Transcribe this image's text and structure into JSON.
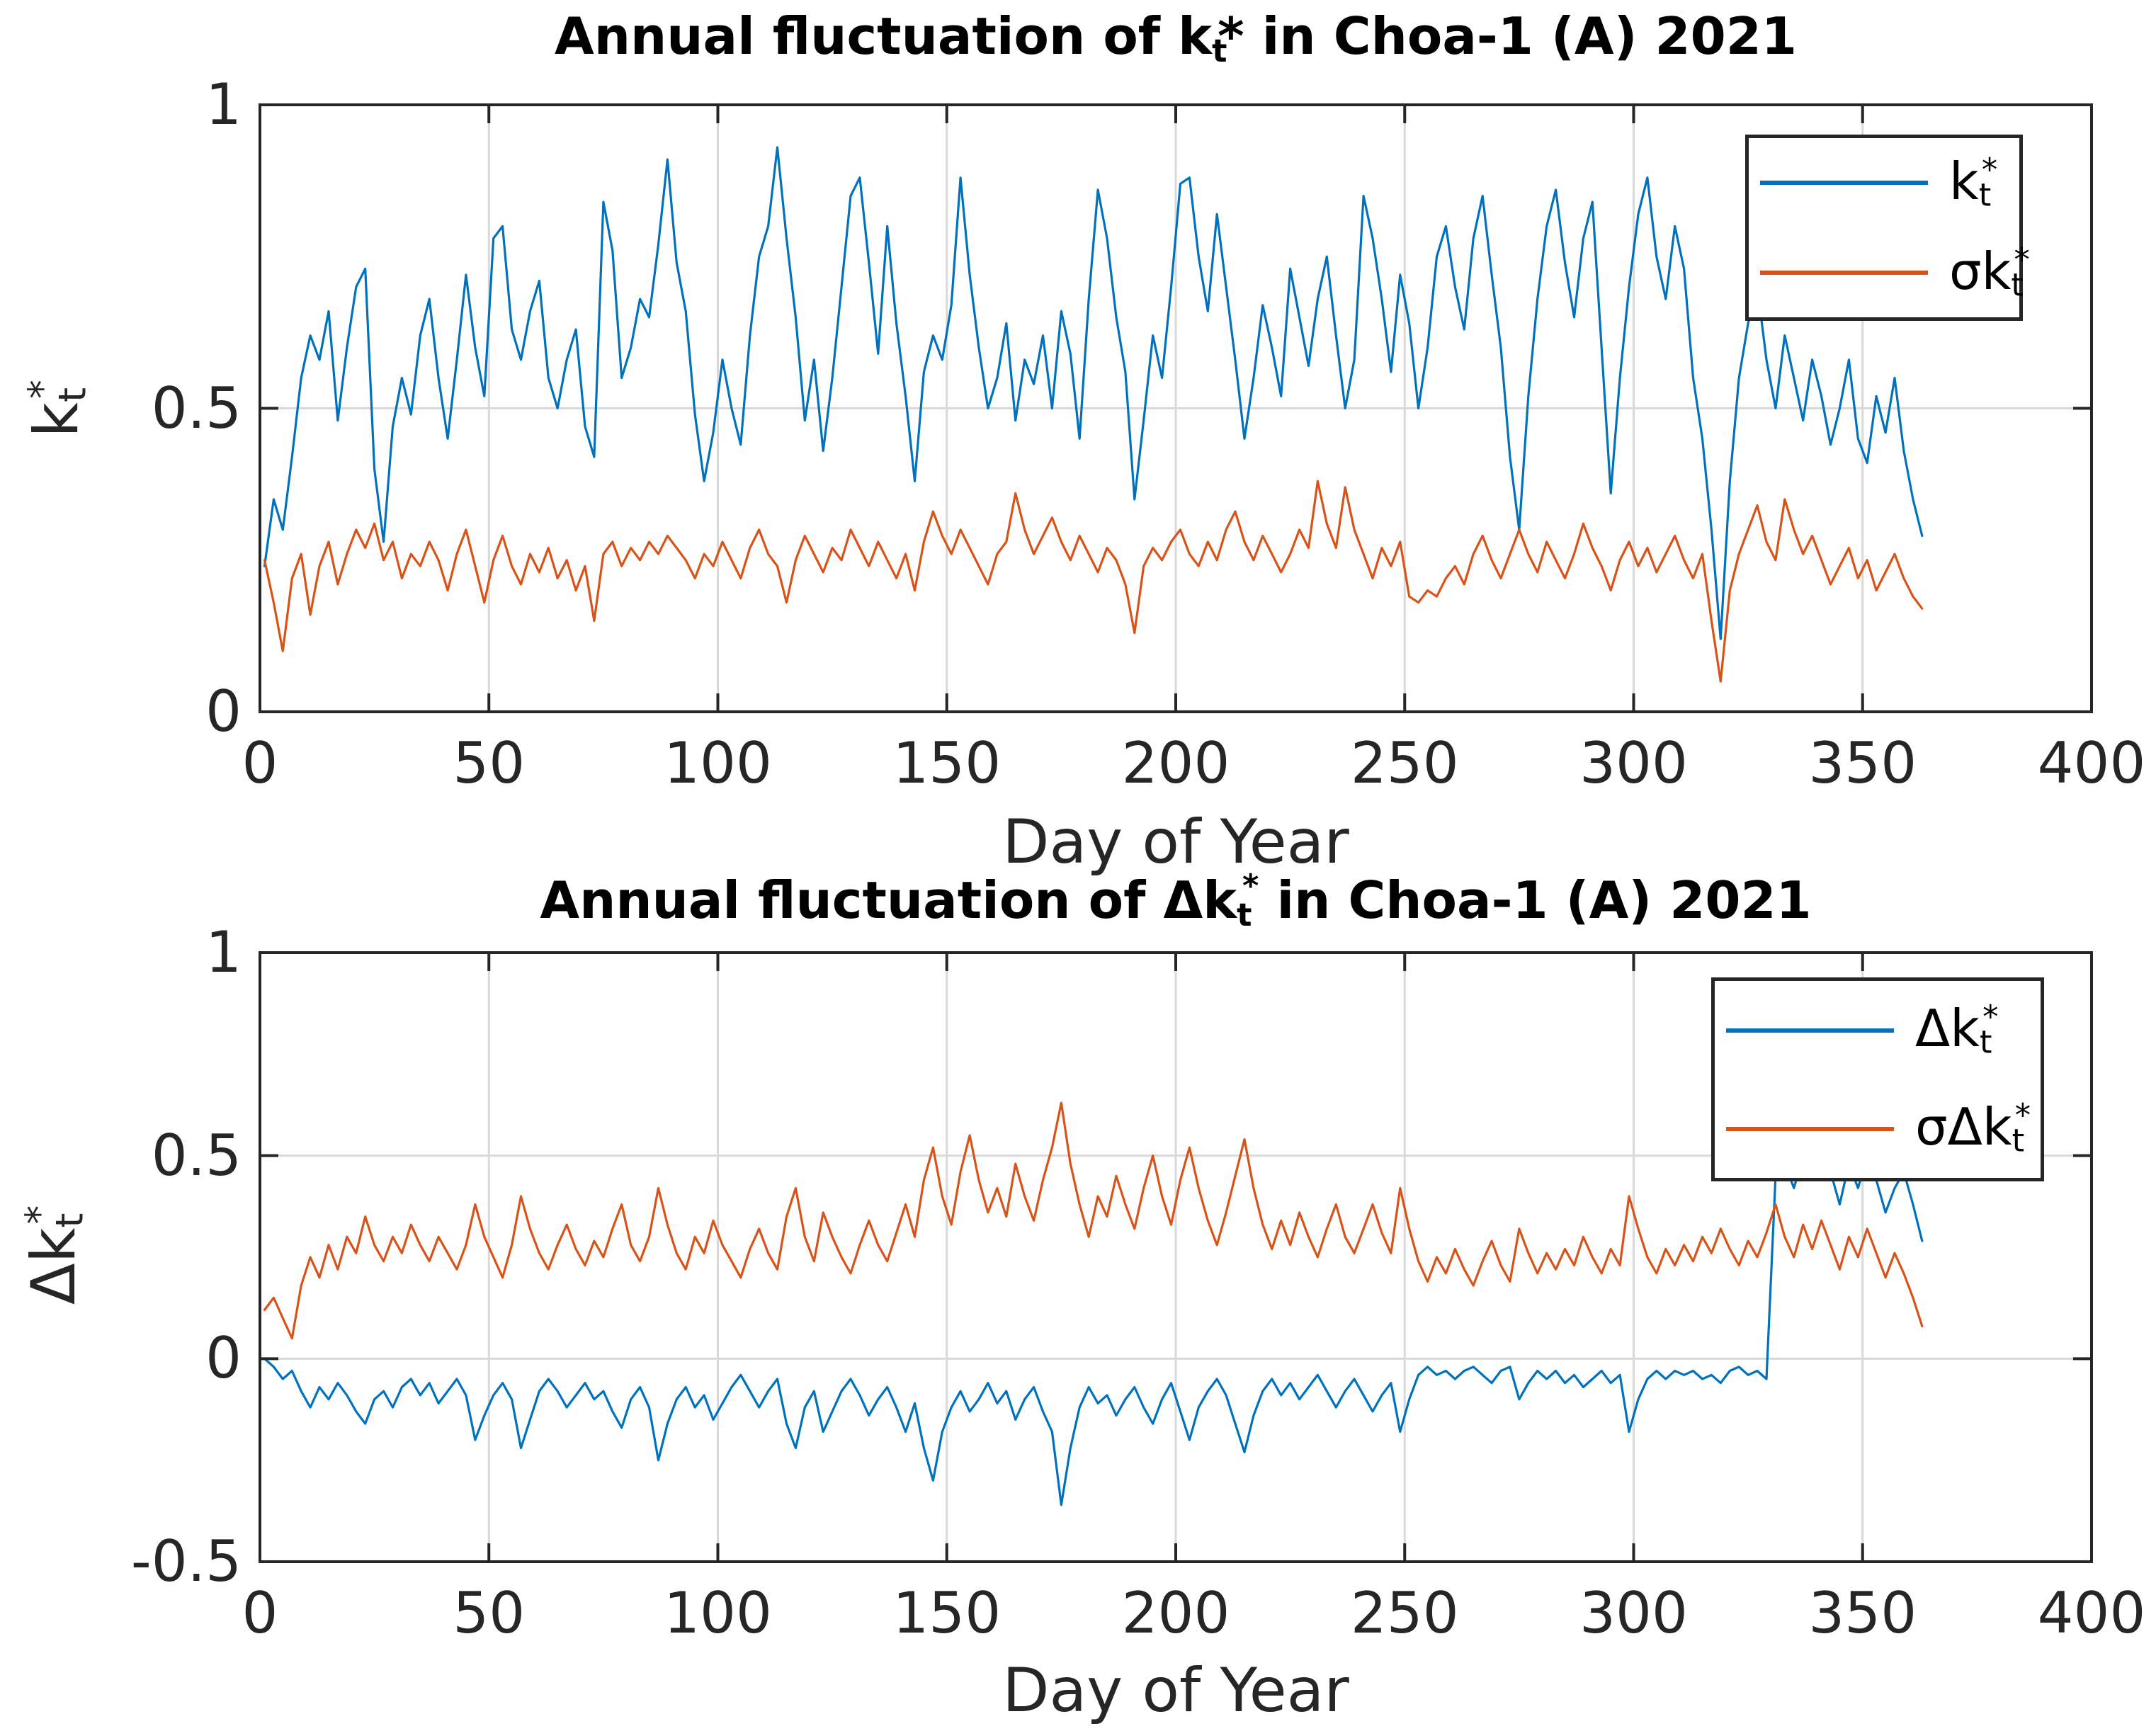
{
  "figure": {
    "background": "#ffffff"
  },
  "colors": {
    "series_blue": "#0072BD",
    "series_orange": "#D95319",
    "grid": "#d9d9d9",
    "axis": "#262626",
    "title_text": "#000000",
    "tick_text": "#262626"
  },
  "chart_data": [
    {
      "type": "line",
      "title": "Annual fluctuation of k_t* in Choa-1 (A) 2021",
      "title_parts": {
        "pre": "Annual fluctuation of k",
        "sub": "t",
        "sup": "",
        "post": "* in Choa-1 (A) 2021"
      },
      "xlabel": "Day of Year",
      "ylabel": "k_t*",
      "ylabel_parts": {
        "base": "k",
        "sub": "t",
        "sup": "*"
      },
      "xlim": [
        0,
        400
      ],
      "ylim": [
        0,
        1
      ],
      "xticks": [
        0,
        50,
        100,
        150,
        200,
        250,
        300,
        350,
        400
      ],
      "yticks": [
        0,
        0.5,
        1
      ],
      "grid": true,
      "legend_position": "northeast",
      "x_days": {
        "start": 1,
        "step": 2,
        "count": 182
      },
      "series": [
        {
          "name": "k_t*",
          "label_parts": {
            "base": "k",
            "sub": "t",
            "sup": "*"
          },
          "color": "#0072BD",
          "values": [
            0.24,
            0.35,
            0.3,
            0.42,
            0.55,
            0.62,
            0.58,
            0.66,
            0.48,
            0.6,
            0.7,
            0.73,
            0.4,
            0.28,
            0.47,
            0.55,
            0.49,
            0.62,
            0.68,
            0.55,
            0.45,
            0.58,
            0.72,
            0.6,
            0.52,
            0.78,
            0.8,
            0.63,
            0.58,
            0.66,
            0.71,
            0.55,
            0.5,
            0.58,
            0.63,
            0.47,
            0.42,
            0.84,
            0.76,
            0.55,
            0.6,
            0.68,
            0.65,
            0.77,
            0.91,
            0.74,
            0.66,
            0.49,
            0.38,
            0.46,
            0.58,
            0.5,
            0.44,
            0.62,
            0.75,
            0.8,
            0.93,
            0.78,
            0.65,
            0.48,
            0.58,
            0.43,
            0.55,
            0.7,
            0.85,
            0.88,
            0.74,
            0.59,
            0.8,
            0.64,
            0.52,
            0.38,
            0.56,
            0.62,
            0.58,
            0.67,
            0.88,
            0.72,
            0.6,
            0.5,
            0.55,
            0.64,
            0.48,
            0.58,
            0.54,
            0.62,
            0.5,
            0.66,
            0.59,
            0.45,
            0.68,
            0.86,
            0.78,
            0.65,
            0.56,
            0.35,
            0.48,
            0.62,
            0.55,
            0.7,
            0.87,
            0.88,
            0.75,
            0.66,
            0.82,
            0.7,
            0.58,
            0.45,
            0.55,
            0.67,
            0.6,
            0.52,
            0.73,
            0.65,
            0.57,
            0.68,
            0.75,
            0.62,
            0.5,
            0.58,
            0.85,
            0.78,
            0.68,
            0.56,
            0.72,
            0.64,
            0.5,
            0.6,
            0.75,
            0.8,
            0.7,
            0.63,
            0.78,
            0.85,
            0.72,
            0.6,
            0.42,
            0.3,
            0.52,
            0.68,
            0.8,
            0.86,
            0.74,
            0.65,
            0.78,
            0.84,
            0.6,
            0.36,
            0.55,
            0.7,
            0.82,
            0.88,
            0.75,
            0.68,
            0.8,
            0.73,
            0.55,
            0.45,
            0.3,
            0.12,
            0.38,
            0.55,
            0.64,
            0.7,
            0.58,
            0.5,
            0.62,
            0.55,
            0.48,
            0.58,
            0.52,
            0.44,
            0.5,
            0.58,
            0.45,
            0.41,
            0.52,
            0.46,
            0.55,
            0.43,
            0.35,
            0.29
          ]
        },
        {
          "name": "σk_t*",
          "label_parts": {
            "base": "σk",
            "sub": "t",
            "sup": "*"
          },
          "color": "#D95319",
          "values": [
            0.25,
            0.18,
            0.1,
            0.22,
            0.26,
            0.16,
            0.24,
            0.28,
            0.21,
            0.26,
            0.3,
            0.27,
            0.31,
            0.25,
            0.28,
            0.22,
            0.26,
            0.24,
            0.28,
            0.25,
            0.2,
            0.26,
            0.3,
            0.24,
            0.18,
            0.25,
            0.29,
            0.24,
            0.21,
            0.26,
            0.23,
            0.27,
            0.22,
            0.25,
            0.2,
            0.24,
            0.15,
            0.26,
            0.28,
            0.24,
            0.27,
            0.25,
            0.28,
            0.26,
            0.29,
            0.27,
            0.25,
            0.22,
            0.26,
            0.24,
            0.28,
            0.25,
            0.22,
            0.27,
            0.3,
            0.26,
            0.24,
            0.18,
            0.25,
            0.29,
            0.26,
            0.23,
            0.27,
            0.25,
            0.3,
            0.27,
            0.24,
            0.28,
            0.25,
            0.22,
            0.26,
            0.2,
            0.28,
            0.33,
            0.29,
            0.26,
            0.3,
            0.27,
            0.24,
            0.21,
            0.26,
            0.28,
            0.36,
            0.3,
            0.26,
            0.29,
            0.32,
            0.28,
            0.25,
            0.29,
            0.26,
            0.23,
            0.27,
            0.25,
            0.21,
            0.13,
            0.24,
            0.27,
            0.25,
            0.28,
            0.3,
            0.26,
            0.24,
            0.28,
            0.25,
            0.3,
            0.33,
            0.28,
            0.25,
            0.29,
            0.26,
            0.23,
            0.26,
            0.3,
            0.27,
            0.38,
            0.31,
            0.27,
            0.37,
            0.3,
            0.26,
            0.22,
            0.27,
            0.24,
            0.28,
            0.19,
            0.18,
            0.2,
            0.19,
            0.22,
            0.24,
            0.21,
            0.26,
            0.29,
            0.25,
            0.22,
            0.26,
            0.3,
            0.26,
            0.23,
            0.28,
            0.25,
            0.22,
            0.26,
            0.31,
            0.27,
            0.24,
            0.2,
            0.25,
            0.28,
            0.24,
            0.27,
            0.23,
            0.26,
            0.29,
            0.25,
            0.22,
            0.26,
            0.15,
            0.05,
            0.2,
            0.26,
            0.3,
            0.34,
            0.28,
            0.25,
            0.35,
            0.3,
            0.26,
            0.29,
            0.25,
            0.21,
            0.24,
            0.27,
            0.22,
            0.25,
            0.2,
            0.23,
            0.26,
            0.22,
            0.19,
            0.17
          ]
        }
      ]
    },
    {
      "type": "line",
      "title": "Annual fluctuation of Δk_t* in Choa-1 (A) 2021",
      "title_parts": {
        "pre": "Annual fluctuation of Δk",
        "sub": "t",
        "sup": "*",
        "post": " in Choa-1 (A) 2021"
      },
      "xlabel": "Day of Year",
      "ylabel": "Δk_t*",
      "ylabel_parts": {
        "base": "Δk",
        "sub": "t",
        "sup": "*"
      },
      "xlim": [
        0,
        400
      ],
      "ylim": [
        -0.5,
        1
      ],
      "xticks": [
        0,
        50,
        100,
        150,
        200,
        250,
        300,
        350,
        400
      ],
      "yticks": [
        -0.5,
        0,
        0.5,
        1
      ],
      "grid": true,
      "legend_position": "northeast",
      "x_days": {
        "start": 1,
        "step": 2,
        "count": 182
      },
      "series": [
        {
          "name": "Δk_t*",
          "label_parts": {
            "base": "Δk",
            "sub": "t",
            "sup": "*"
          },
          "color": "#0072BD",
          "values": [
            0,
            -0.02,
            -0.05,
            -0.03,
            -0.08,
            -0.12,
            -0.07,
            -0.1,
            -0.06,
            -0.09,
            -0.13,
            -0.16,
            -0.1,
            -0.08,
            -0.12,
            -0.07,
            -0.05,
            -0.09,
            -0.06,
            -0.11,
            -0.08,
            -0.05,
            -0.09,
            -0.2,
            -0.14,
            -0.09,
            -0.06,
            -0.1,
            -0.22,
            -0.15,
            -0.08,
            -0.05,
            -0.08,
            -0.12,
            -0.09,
            -0.06,
            -0.1,
            -0.08,
            -0.13,
            -0.17,
            -0.1,
            -0.07,
            -0.12,
            -0.25,
            -0.16,
            -0.1,
            -0.07,
            -0.12,
            -0.09,
            -0.15,
            -0.11,
            -0.07,
            -0.04,
            -0.08,
            -0.12,
            -0.08,
            -0.05,
            -0.16,
            -0.22,
            -0.12,
            -0.08,
            -0.18,
            -0.13,
            -0.08,
            -0.05,
            -0.09,
            -0.14,
            -0.1,
            -0.07,
            -0.12,
            -0.18,
            -0.11,
            -0.22,
            -0.3,
            -0.18,
            -0.12,
            -0.08,
            -0.13,
            -0.1,
            -0.06,
            -0.11,
            -0.08,
            -0.15,
            -0.1,
            -0.07,
            -0.13,
            -0.18,
            -0.36,
            -0.22,
            -0.12,
            -0.07,
            -0.11,
            -0.09,
            -0.14,
            -0.1,
            -0.07,
            -0.12,
            -0.16,
            -0.1,
            -0.06,
            -0.13,
            -0.2,
            -0.12,
            -0.08,
            -0.05,
            -0.09,
            -0.16,
            -0.23,
            -0.14,
            -0.08,
            -0.05,
            -0.09,
            -0.06,
            -0.1,
            -0.07,
            -0.04,
            -0.08,
            -0.12,
            -0.08,
            -0.05,
            -0.09,
            -0.13,
            -0.09,
            -0.06,
            -0.18,
            -0.1,
            -0.04,
            -0.02,
            -0.04,
            -0.03,
            -0.05,
            -0.03,
            -0.02,
            -0.04,
            -0.06,
            -0.03,
            -0.02,
            -0.1,
            -0.06,
            -0.03,
            -0.05,
            -0.03,
            -0.06,
            -0.04,
            -0.07,
            -0.05,
            -0.03,
            -0.06,
            -0.04,
            -0.18,
            -0.1,
            -0.05,
            -0.03,
            -0.05,
            -0.03,
            -0.04,
            -0.03,
            -0.05,
            -0.04,
            -0.06,
            -0.03,
            -0.02,
            -0.04,
            -0.03,
            -0.05,
            0.45,
            0.48,
            0.42,
            0.5,
            0.44,
            0.52,
            0.46,
            0.38,
            0.48,
            0.42,
            0.5,
            0.44,
            0.36,
            0.42,
            0.46,
            0.38,
            0.29
          ]
        },
        {
          "name": "σΔk_t*",
          "label_parts": {
            "base": "σΔk",
            "sub": "t",
            "sup": "*"
          },
          "color": "#D95319",
          "values": [
            0.12,
            0.15,
            0.1,
            0.05,
            0.18,
            0.25,
            0.2,
            0.28,
            0.22,
            0.3,
            0.26,
            0.35,
            0.28,
            0.24,
            0.3,
            0.26,
            0.33,
            0.28,
            0.24,
            0.3,
            0.26,
            0.22,
            0.28,
            0.38,
            0.3,
            0.25,
            0.2,
            0.28,
            0.4,
            0.32,
            0.26,
            0.22,
            0.28,
            0.33,
            0.27,
            0.23,
            0.29,
            0.25,
            0.32,
            0.38,
            0.28,
            0.24,
            0.3,
            0.42,
            0.33,
            0.26,
            0.22,
            0.3,
            0.26,
            0.34,
            0.28,
            0.24,
            0.2,
            0.27,
            0.32,
            0.26,
            0.22,
            0.35,
            0.42,
            0.3,
            0.24,
            0.36,
            0.3,
            0.25,
            0.21,
            0.28,
            0.34,
            0.28,
            0.24,
            0.31,
            0.38,
            0.3,
            0.44,
            0.52,
            0.4,
            0.33,
            0.46,
            0.55,
            0.44,
            0.36,
            0.42,
            0.35,
            0.48,
            0.4,
            0.34,
            0.44,
            0.52,
            0.63,
            0.48,
            0.38,
            0.3,
            0.4,
            0.35,
            0.45,
            0.38,
            0.32,
            0.42,
            0.5,
            0.4,
            0.33,
            0.44,
            0.52,
            0.42,
            0.34,
            0.28,
            0.36,
            0.45,
            0.54,
            0.42,
            0.33,
            0.27,
            0.34,
            0.28,
            0.36,
            0.3,
            0.25,
            0.32,
            0.38,
            0.3,
            0.26,
            0.32,
            0.38,
            0.31,
            0.26,
            0.42,
            0.32,
            0.24,
            0.19,
            0.25,
            0.21,
            0.27,
            0.22,
            0.18,
            0.24,
            0.29,
            0.23,
            0.19,
            0.32,
            0.26,
            0.21,
            0.26,
            0.22,
            0.27,
            0.23,
            0.3,
            0.25,
            0.21,
            0.27,
            0.23,
            0.4,
            0.32,
            0.25,
            0.21,
            0.27,
            0.23,
            0.28,
            0.24,
            0.3,
            0.26,
            0.32,
            0.27,
            0.23,
            0.29,
            0.25,
            0.31,
            0.38,
            0.3,
            0.25,
            0.33,
            0.27,
            0.34,
            0.28,
            0.22,
            0.3,
            0.25,
            0.32,
            0.26,
            0.2,
            0.26,
            0.21,
            0.15,
            0.08
          ]
        }
      ]
    }
  ]
}
